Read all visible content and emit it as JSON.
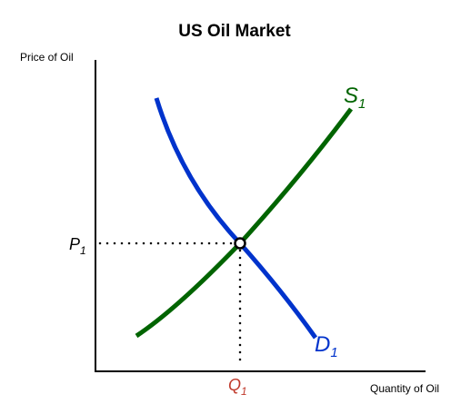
{
  "title": "US Oil Market",
  "axes": {
    "y_label": "Price of Oil",
    "x_label": "Quantity of Oil"
  },
  "curves": {
    "supply": {
      "letter": "S",
      "subscript": "1",
      "color": "#006400"
    },
    "demand": {
      "letter": "D",
      "subscript": "1",
      "color": "#0033cc"
    }
  },
  "equilibrium": {
    "price": {
      "letter": "P",
      "subscript": "1",
      "color": "#000000"
    },
    "quantity": {
      "letter": "Q",
      "subscript": "1",
      "color": "#c0392b"
    }
  }
}
